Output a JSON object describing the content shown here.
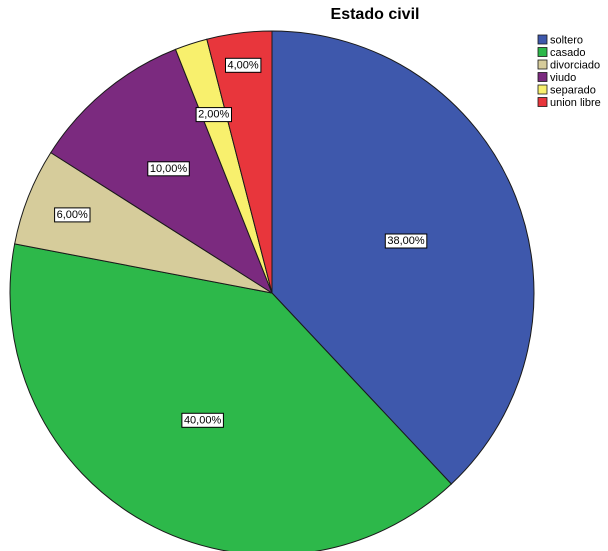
{
  "chart_data": {
    "type": "pie",
    "title": "Estado civil",
    "categories": [
      "soltero",
      "casado",
      "divorciado",
      "viudo",
      "separado",
      "union libre"
    ],
    "values": [
      38,
      40,
      6,
      10,
      2,
      4
    ],
    "data_labels": [
      "38,00%",
      "40,00%",
      "6,00%",
      "10,00%",
      "2,00%",
      "4,00%"
    ],
    "colors": [
      "#3e58ac",
      "#2db84a",
      "#d6cc9b",
      "#7b2a7f",
      "#f8f06d",
      "#e8363c"
    ],
    "start_angle": "12 o'clock",
    "direction": "clockwise",
    "legend_position": "top-right"
  }
}
